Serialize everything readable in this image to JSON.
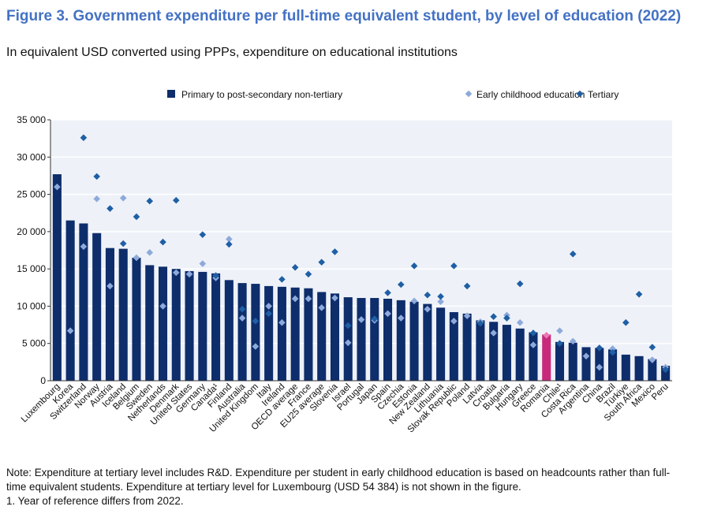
{
  "title": "Figure 3. Government expenditure per full-time equivalent student, by level of education (2022)",
  "subtitle": "In equivalent USD converted using PPPs, expenditure on educational institutions",
  "notes": [
    "Note: Expenditure at tertiary level includes R&D. Expenditure per student in early childhood education is based on headcounts rather than full-",
    "time equivalent students. Expenditure at tertiary level for Luxembourg (USD 54 384) is not shown in the figure.",
    "1. Year of reference differs from 2022."
  ],
  "colors": {
    "bar": "#0e2d6b",
    "highlight_bar": "#c8297a",
    "early_childhood": "#8eaadb",
    "tertiary": "#1f5fa5",
    "highlight_marker": "#e879b5",
    "plot_bg": "#eef2f8",
    "grid": "#ffffff"
  },
  "chart_data": {
    "type": "bar",
    "ylim": [
      0,
      35000
    ],
    "yticks": [
      "0",
      "5 000",
      "10 000",
      "15 000",
      "20 000",
      "25 000",
      "30 000",
      "35 000"
    ],
    "grid": true,
    "legend_position": "top",
    "highlight_category": "Romania",
    "series": [
      {
        "name": "Primary to post-secondary non-tertiary",
        "kind": "bar"
      },
      {
        "name": "Early childhood education",
        "kind": "marker"
      },
      {
        "name": "Tertiary",
        "kind": "marker"
      }
    ],
    "categories": [
      "Luxembourg",
      "Korea",
      "Switzerland",
      "Norway",
      "Austria",
      "Iceland",
      "Belgium",
      "Sweden",
      "Netherlands",
      "Denmark",
      "United States",
      "Germany",
      "Canada¹",
      "Finland",
      "Australia",
      "United Kingdom",
      "Italy",
      "Ireland",
      "OECD average",
      "France",
      "EU25 average",
      "Slovenia",
      "Israel",
      "Portugal",
      "Japan",
      "Spain",
      "Czechia",
      "Estonia",
      "New Zealand",
      "Lithuania",
      "Slovak Republic",
      "Poland",
      "Latvia",
      "Croatia",
      "Bulgaria",
      "Hungary",
      "Greece",
      "Romania",
      "Chile¹",
      "Costa Rica",
      "Argentina",
      "China",
      "Brazil",
      "Türkiye",
      "South Africa",
      "Mexico",
      "Peru"
    ],
    "primary_to_post_secondary": [
      27700,
      21500,
      21100,
      19800,
      17800,
      17700,
      16500,
      15500,
      15300,
      15000,
      14700,
      14600,
      14400,
      13500,
      13100,
      13000,
      12700,
      12600,
      12500,
      12400,
      11900,
      11700,
      11200,
      11100,
      11100,
      11000,
      10800,
      10600,
      10300,
      9800,
      9200,
      9000,
      8100,
      7900,
      7500,
      7000,
      6500,
      6200,
      5200,
      5100,
      4500,
      4400,
      4200,
      3500,
      3300,
      2900,
      2000
    ],
    "early_childhood": [
      26000,
      6700,
      18000,
      24400,
      12700,
      24500,
      16500,
      17200,
      10000,
      14500,
      14300,
      15700,
      13800,
      19000,
      8400,
      4600,
      10000,
      7800,
      11000,
      11000,
      9800,
      11100,
      5100,
      8200,
      8100,
      9000,
      8400,
      10700,
      9600,
      10600,
      8000,
      8700,
      7900,
      6400,
      8800,
      7800,
      4800,
      6100,
      6700,
      5300,
      3300,
      1800,
      4300,
      null,
      null,
      2800,
      1800
    ],
    "tertiary": [
      null,
      null,
      32600,
      27400,
      23100,
      18400,
      22000,
      24100,
      18600,
      24200,
      null,
      19600,
      14100,
      18300,
      9600,
      8000,
      9000,
      13600,
      15200,
      14300,
      15900,
      17300,
      7400,
      null,
      8300,
      11800,
      12900,
      15400,
      11500,
      11300,
      15400,
      12700,
      7700,
      8600,
      8400,
      13000,
      6400,
      null,
      5000,
      17000,
      null,
      4400,
      3800,
      7800,
      11600,
      4500,
      1500
    ]
  }
}
